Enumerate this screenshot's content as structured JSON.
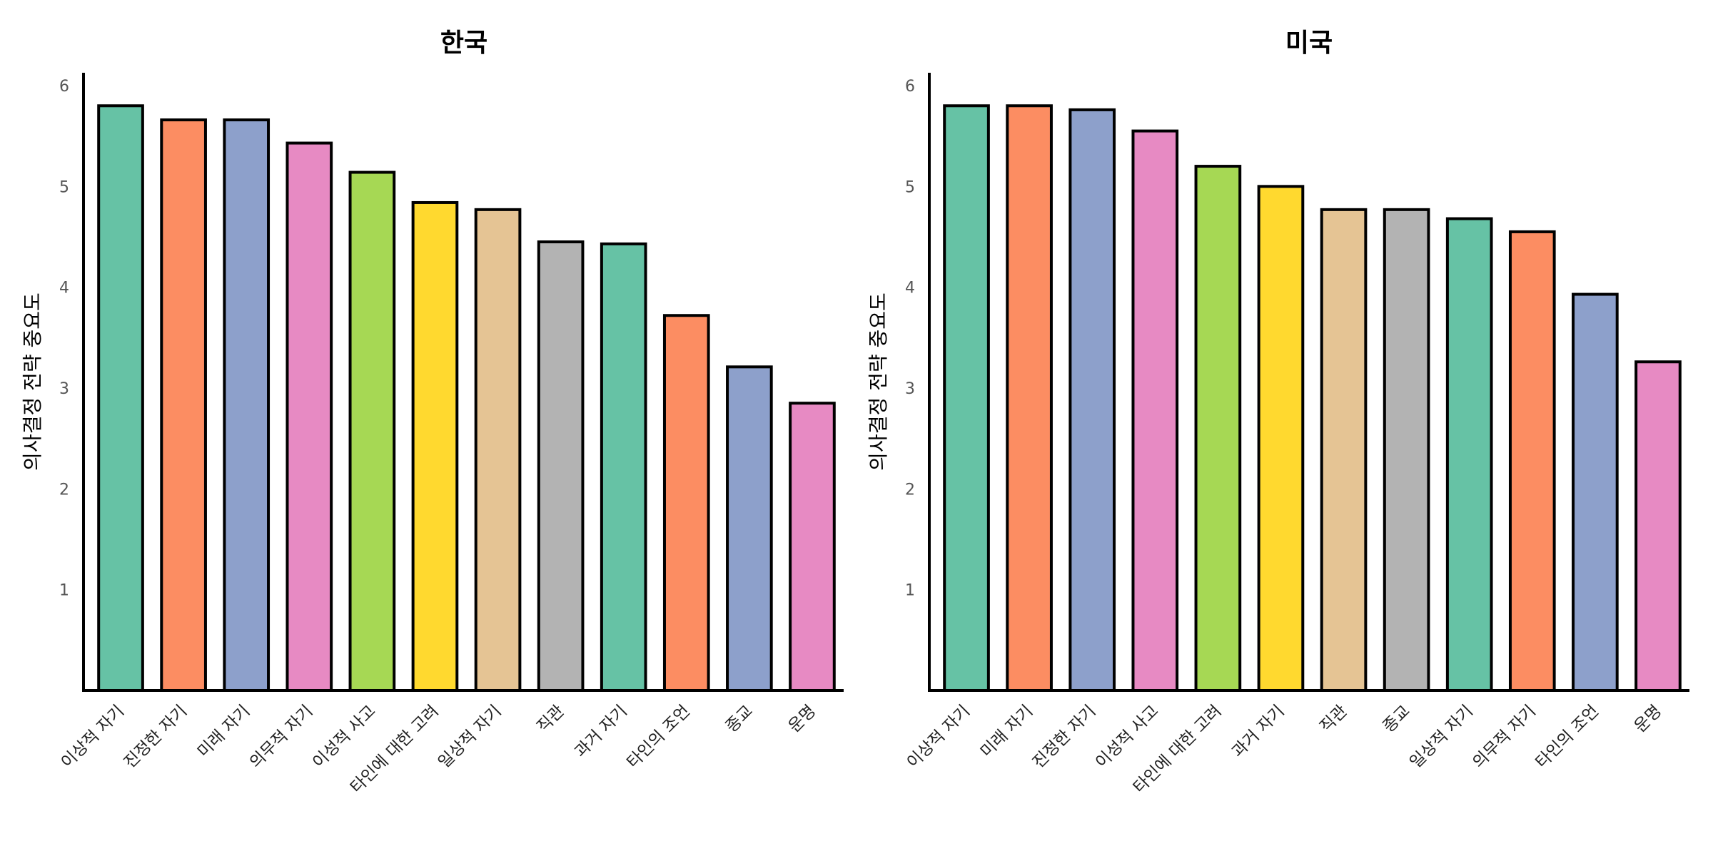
{
  "chart_data": [
    {
      "type": "bar",
      "title": "한국",
      "xlabel": "",
      "ylabel": "의사결정 전략 중요도",
      "ylim": [
        0,
        6
      ],
      "yticks": [
        1,
        2,
        3,
        4,
        5,
        6
      ],
      "grid": false,
      "categories": [
        "이상적 자기",
        "진정한 자기",
        "미래 자기",
        "의무적 자기",
        "이성적 사고",
        "타인에 대한 고려",
        "일상적 자기",
        "직관",
        "과거 자기",
        "타인의 조언",
        "종교",
        "운명"
      ],
      "values": [
        5.8,
        5.66,
        5.66,
        5.43,
        5.14,
        4.84,
        4.77,
        4.45,
        4.43,
        3.72,
        3.21,
        2.85
      ],
      "colors": [
        "#66c2a5",
        "#fc8d62",
        "#8da0cb",
        "#e78ac3",
        "#a6d854",
        "#ffd92f",
        "#e5c494",
        "#b3b3b3",
        "#66c2a5",
        "#fc8d62",
        "#8da0cb",
        "#e78ac3"
      ]
    },
    {
      "type": "bar",
      "title": "미국",
      "xlabel": "",
      "ylabel": "의사결정 전략 중요도",
      "ylim": [
        0,
        6
      ],
      "yticks": [
        1,
        2,
        3,
        4,
        5,
        6
      ],
      "grid": false,
      "categories": [
        "이상적 자기",
        "미래 자기",
        "진정한 자기",
        "이성적 사고",
        "타인에 대한 고려",
        "과거 자기",
        "직관",
        "종교",
        "일상적 자기",
        "의무적 자기",
        "타인의 조언",
        "운명"
      ],
      "values": [
        5.8,
        5.8,
        5.76,
        5.55,
        5.2,
        5.0,
        4.77,
        4.77,
        4.68,
        4.55,
        3.93,
        3.26
      ],
      "colors": [
        "#66c2a5",
        "#fc8d62",
        "#8da0cb",
        "#e78ac3",
        "#a6d854",
        "#ffd92f",
        "#e5c494",
        "#b3b3b3",
        "#66c2a5",
        "#fc8d62",
        "#8da0cb",
        "#e78ac3"
      ]
    }
  ]
}
